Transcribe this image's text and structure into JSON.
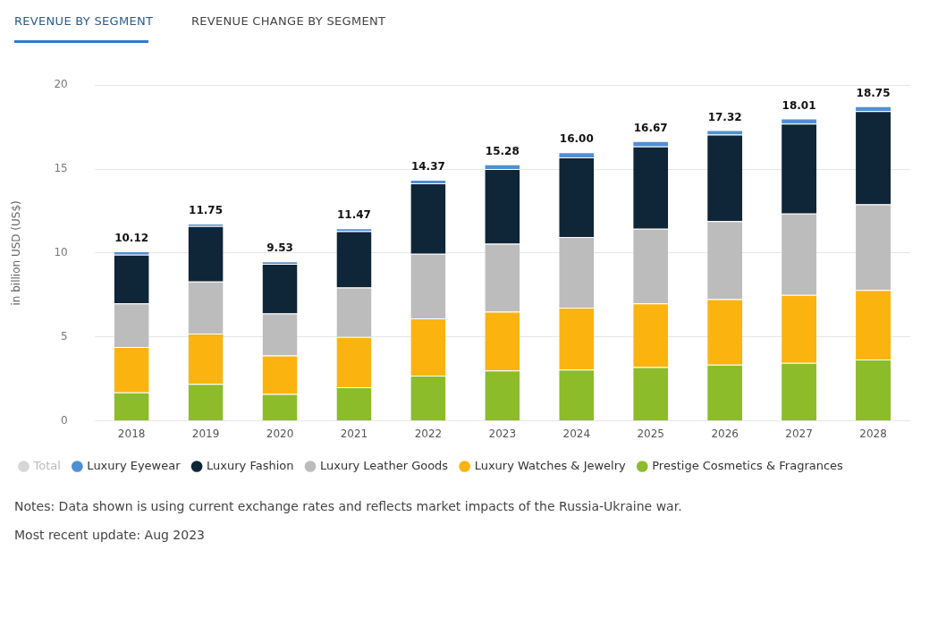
{
  "chart_data": {
    "type": "bar",
    "title": "REVENUE BY SEGMENT",
    "subtitle": "REVENUE CHANGE BY SEGMENT",
    "ylabel": "in billion USD (US$)",
    "categories": [
      "2018",
      "2019",
      "2020",
      "2021",
      "2022",
      "2023",
      "2024",
      "2025",
      "2026",
      "2027",
      "2028"
    ],
    "stacked": true,
    "ylim": [
      0,
      20
    ],
    "yticks": [
      0,
      5,
      10,
      15,
      20
    ],
    "grid": "y",
    "legend": "bottom",
    "series": [
      {
        "name": "Prestige Cosmetics & Fragrances",
        "color": "#8cbc2a",
        "values": [
          1.7,
          2.2,
          1.6,
          2.0,
          2.7,
          3.0,
          3.05,
          3.2,
          3.35,
          3.45,
          3.65
        ]
      },
      {
        "name": "Luxury Watches & Jewelry",
        "color": "#fbb30f",
        "values": [
          2.7,
          3.0,
          2.3,
          3.0,
          3.4,
          3.5,
          3.7,
          3.8,
          3.9,
          4.05,
          4.15
        ]
      },
      {
        "name": "Luxury Leather Goods",
        "color": "#bcbcbc",
        "values": [
          2.6,
          3.1,
          2.5,
          2.95,
          3.85,
          4.05,
          4.2,
          4.45,
          4.65,
          4.85,
          5.1
        ]
      },
      {
        "name": "Luxury Fashion",
        "color": "#0f2538",
        "values": [
          2.9,
          3.3,
          2.95,
          3.35,
          4.2,
          4.45,
          4.75,
          4.9,
          5.15,
          5.35,
          5.55
        ]
      },
      {
        "name": "Luxury Eyewear",
        "color": "#4f90d4",
        "values": [
          0.2,
          0.15,
          0.15,
          0.17,
          0.22,
          0.28,
          0.3,
          0.32,
          0.27,
          0.31,
          0.3
        ]
      },
      {
        "name": "Total",
        "color": "#d6d6d6",
        "values": [
          null,
          null,
          null,
          null,
          null,
          null,
          null,
          null,
          null,
          null,
          null
        ]
      }
    ],
    "totals": [
      "10.12",
      "11.75",
      "9.53",
      "11.47",
      "14.37",
      "15.28",
      "16.00",
      "16.67",
      "17.32",
      "18.01",
      "18.75"
    ],
    "annotations": [
      "Notes: Data shown is using current exchange rates and reflects market impacts of the Russia-Ukraine war.",
      "Most recent update: Aug 2023"
    ]
  }
}
